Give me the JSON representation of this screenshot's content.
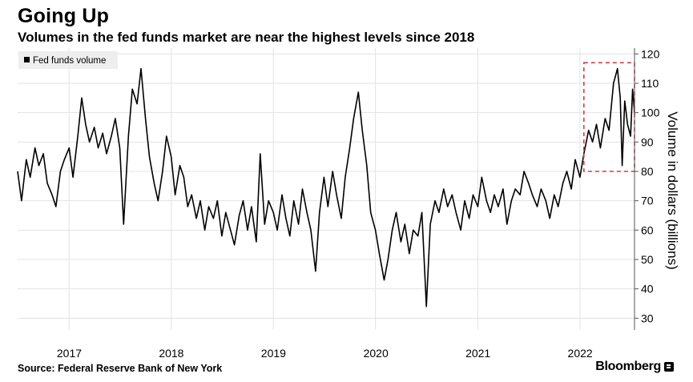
{
  "header": {
    "title": "Going Up",
    "subtitle": "Volumes in the fed funds market are near the highest levels since 2018"
  },
  "footer": {
    "source": "Source: Federal Reserve Bank of New York",
    "brand": "Bloomberg"
  },
  "colors": {
    "line": "#000000",
    "grid": "#e3e3e3",
    "highlight_box": "#d9394a",
    "legend_bg": "#eeeeee"
  },
  "chart_data": {
    "type": "line",
    "title": "Going Up",
    "subtitle": "Volumes in the fed funds market are near the highest levels since 2018",
    "xlabel": "",
    "ylabel": "Volume in dollars (billions)",
    "x_ticks": [
      "2017",
      "2018",
      "2019",
      "2020",
      "2021",
      "2022"
    ],
    "xlim": [
      "2016-07-01",
      "2022-07-15"
    ],
    "y_ticks": [
      30,
      40,
      50,
      60,
      70,
      80,
      90,
      100,
      110,
      120
    ],
    "ylim": [
      26,
      122
    ],
    "y_axis_side": "right",
    "grid": true,
    "legend": {
      "position": "top-left",
      "entries": [
        "Fed funds volume"
      ]
    },
    "annotations": [
      {
        "type": "dashed-box",
        "x_range": [
          "2022-01-15",
          "2022-07-15"
        ],
        "y_range": [
          80,
          117
        ]
      }
    ],
    "series": [
      {
        "name": "Fed funds volume",
        "color": "#000000",
        "points": [
          [
            "2016-07-01",
            80
          ],
          [
            "2016-07-15",
            70
          ],
          [
            "2016-08-01",
            84
          ],
          [
            "2016-08-15",
            78
          ],
          [
            "2016-09-01",
            88
          ],
          [
            "2016-09-15",
            82
          ],
          [
            "2016-10-01",
            86
          ],
          [
            "2016-10-15",
            76
          ],
          [
            "2016-11-01",
            72
          ],
          [
            "2016-11-15",
            68
          ],
          [
            "2016-12-01",
            80
          ],
          [
            "2016-12-15",
            84
          ],
          [
            "2017-01-01",
            88
          ],
          [
            "2017-01-15",
            78
          ],
          [
            "2017-02-01",
            92
          ],
          [
            "2017-02-15",
            105
          ],
          [
            "2017-03-01",
            96
          ],
          [
            "2017-03-15",
            90
          ],
          [
            "2017-04-01",
            95
          ],
          [
            "2017-04-15",
            88
          ],
          [
            "2017-05-01",
            93
          ],
          [
            "2017-05-15",
            86
          ],
          [
            "2017-06-01",
            92
          ],
          [
            "2017-06-15",
            98
          ],
          [
            "2017-07-01",
            88
          ],
          [
            "2017-07-15",
            62
          ],
          [
            "2017-08-01",
            92
          ],
          [
            "2017-08-15",
            108
          ],
          [
            "2017-09-01",
            103
          ],
          [
            "2017-09-15",
            115
          ],
          [
            "2017-10-01",
            98
          ],
          [
            "2017-10-15",
            85
          ],
          [
            "2017-11-01",
            76
          ],
          [
            "2017-11-15",
            70
          ],
          [
            "2017-12-01",
            80
          ],
          [
            "2017-12-15",
            92
          ],
          [
            "2018-01-01",
            85
          ],
          [
            "2018-01-15",
            72
          ],
          [
            "2018-02-01",
            82
          ],
          [
            "2018-02-15",
            78
          ],
          [
            "2018-03-01",
            68
          ],
          [
            "2018-03-15",
            72
          ],
          [
            "2018-04-01",
            64
          ],
          [
            "2018-04-15",
            70
          ],
          [
            "2018-05-01",
            60
          ],
          [
            "2018-05-15",
            68
          ],
          [
            "2018-06-01",
            64
          ],
          [
            "2018-06-15",
            70
          ],
          [
            "2018-07-01",
            58
          ],
          [
            "2018-07-15",
            66
          ],
          [
            "2018-08-01",
            60
          ],
          [
            "2018-08-15",
            55
          ],
          [
            "2018-09-01",
            65
          ],
          [
            "2018-09-15",
            70
          ],
          [
            "2018-10-01",
            60
          ],
          [
            "2018-10-15",
            68
          ],
          [
            "2018-11-01",
            56
          ],
          [
            "2018-11-15",
            86
          ],
          [
            "2018-12-01",
            62
          ],
          [
            "2018-12-15",
            70
          ],
          [
            "2019-01-01",
            66
          ],
          [
            "2019-01-15",
            60
          ],
          [
            "2019-02-01",
            72
          ],
          [
            "2019-02-15",
            64
          ],
          [
            "2019-03-01",
            58
          ],
          [
            "2019-03-15",
            70
          ],
          [
            "2019-04-01",
            62
          ],
          [
            "2019-04-15",
            74
          ],
          [
            "2019-05-01",
            66
          ],
          [
            "2019-05-15",
            60
          ],
          [
            "2019-06-01",
            46
          ],
          [
            "2019-06-15",
            66
          ],
          [
            "2019-07-01",
            78
          ],
          [
            "2019-07-15",
            68
          ],
          [
            "2019-08-01",
            80
          ],
          [
            "2019-08-15",
            72
          ],
          [
            "2019-09-01",
            64
          ],
          [
            "2019-09-15",
            78
          ],
          [
            "2019-10-01",
            88
          ],
          [
            "2019-10-15",
            98
          ],
          [
            "2019-11-01",
            107
          ],
          [
            "2019-11-15",
            94
          ],
          [
            "2019-12-01",
            82
          ],
          [
            "2019-12-15",
            66
          ],
          [
            "2020-01-01",
            60
          ],
          [
            "2020-01-15",
            52
          ],
          [
            "2020-02-01",
            43
          ],
          [
            "2020-02-15",
            50
          ],
          [
            "2020-03-01",
            60
          ],
          [
            "2020-03-15",
            66
          ],
          [
            "2020-04-01",
            56
          ],
          [
            "2020-04-15",
            62
          ],
          [
            "2020-05-01",
            52
          ],
          [
            "2020-05-15",
            60
          ],
          [
            "2020-06-01",
            58
          ],
          [
            "2020-06-15",
            66
          ],
          [
            "2020-07-01",
            34
          ],
          [
            "2020-07-15",
            62
          ],
          [
            "2020-08-01",
            70
          ],
          [
            "2020-08-15",
            66
          ],
          [
            "2020-09-01",
            74
          ],
          [
            "2020-09-15",
            68
          ],
          [
            "2020-10-01",
            72
          ],
          [
            "2020-10-15",
            66
          ],
          [
            "2020-11-01",
            60
          ],
          [
            "2020-11-15",
            70
          ],
          [
            "2020-12-01",
            64
          ],
          [
            "2020-12-15",
            72
          ],
          [
            "2021-01-01",
            68
          ],
          [
            "2021-01-15",
            78
          ],
          [
            "2021-02-01",
            70
          ],
          [
            "2021-02-15",
            66
          ],
          [
            "2021-03-01",
            72
          ],
          [
            "2021-03-15",
            68
          ],
          [
            "2021-04-01",
            74
          ],
          [
            "2021-04-15",
            62
          ],
          [
            "2021-05-01",
            70
          ],
          [
            "2021-05-15",
            74
          ],
          [
            "2021-06-01",
            72
          ],
          [
            "2021-06-15",
            80
          ],
          [
            "2021-07-01",
            76
          ],
          [
            "2021-07-15",
            72
          ],
          [
            "2021-08-01",
            68
          ],
          [
            "2021-08-15",
            74
          ],
          [
            "2021-09-01",
            70
          ],
          [
            "2021-09-15",
            64
          ],
          [
            "2021-10-01",
            72
          ],
          [
            "2021-10-15",
            68
          ],
          [
            "2021-11-01",
            76
          ],
          [
            "2021-11-15",
            80
          ],
          [
            "2021-12-01",
            74
          ],
          [
            "2021-12-15",
            84
          ],
          [
            "2022-01-01",
            78
          ],
          [
            "2022-01-15",
            86
          ],
          [
            "2022-02-01",
            94
          ],
          [
            "2022-02-15",
            90
          ],
          [
            "2022-03-01",
            96
          ],
          [
            "2022-03-15",
            88
          ],
          [
            "2022-04-01",
            98
          ],
          [
            "2022-04-15",
            94
          ],
          [
            "2022-05-01",
            110
          ],
          [
            "2022-05-15",
            115
          ],
          [
            "2022-05-25",
            105
          ],
          [
            "2022-06-01",
            82
          ],
          [
            "2022-06-10",
            104
          ],
          [
            "2022-06-20",
            96
          ],
          [
            "2022-07-01",
            92
          ],
          [
            "2022-07-08",
            108
          ],
          [
            "2022-07-15",
            100
          ]
        ]
      }
    ]
  }
}
